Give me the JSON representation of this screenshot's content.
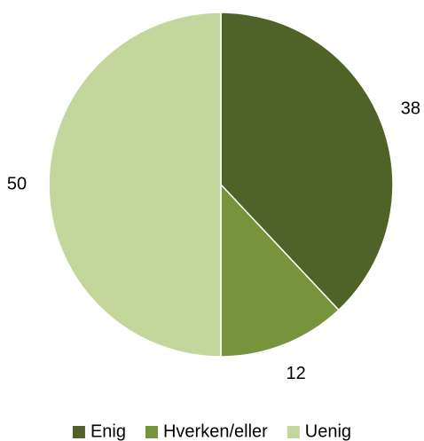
{
  "chart_data": {
    "type": "pie",
    "categories": [
      "Enig",
      "Hverken/eller",
      "Uenig"
    ],
    "values": [
      38,
      12,
      50
    ],
    "colors": [
      "#4f6228",
      "#77933c",
      "#c3d69b"
    ],
    "legend": "bottom"
  }
}
